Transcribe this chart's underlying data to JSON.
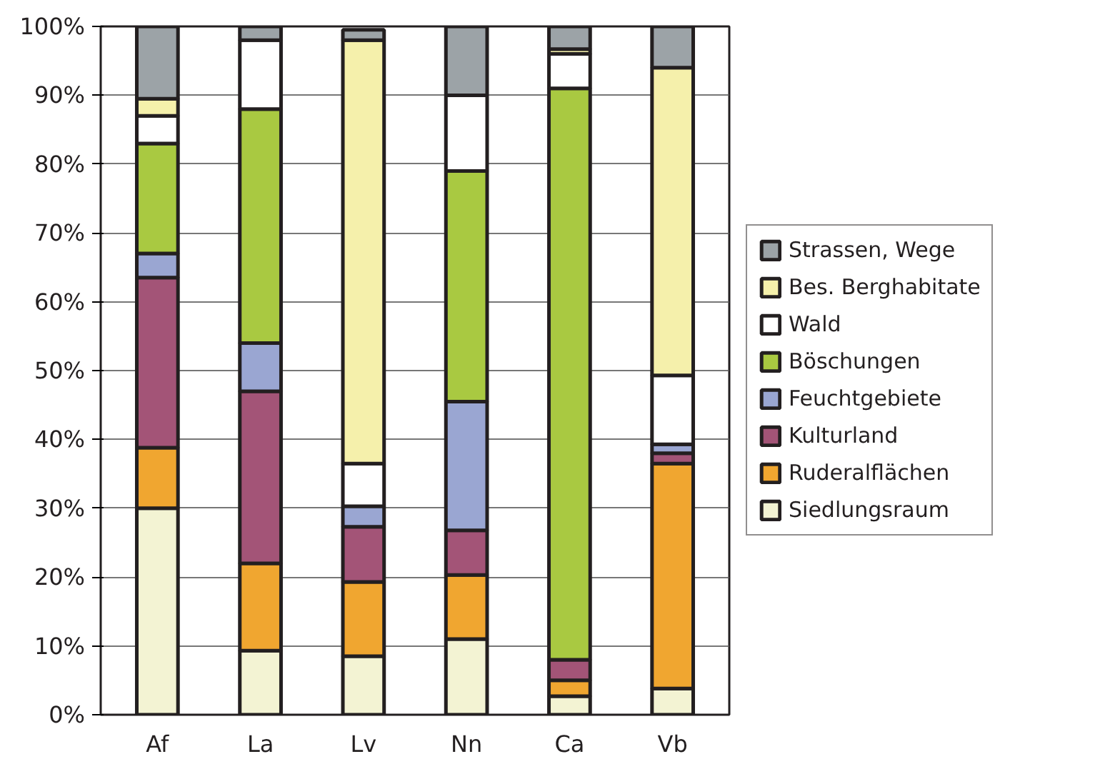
{
  "chart_data": {
    "type": "bar",
    "stacked": true,
    "categories": [
      "Af",
      "La",
      "Lv",
      "Nn",
      "Ca",
      "Vb"
    ],
    "ylim": [
      0,
      100
    ],
    "yticks": [
      {
        "value": 0,
        "label": "0%"
      },
      {
        "value": 10,
        "label": "10%"
      },
      {
        "value": 20,
        "label": "20%"
      },
      {
        "value": 30,
        "label": "30%"
      },
      {
        "value": 40,
        "label": "40%"
      },
      {
        "value": 50,
        "label": "50%"
      },
      {
        "value": 60,
        "label": "60%"
      },
      {
        "value": 70,
        "label": "70%"
      },
      {
        "value": 80,
        "label": "80%"
      },
      {
        "value": 90,
        "label": "90%"
      },
      {
        "value": 100,
        "label": "100%"
      }
    ],
    "grid": "y",
    "legend": "right",
    "series": [
      {
        "name": "Siedlungsraum",
        "color": "#f3f3d3",
        "values": [
          30,
          9.3,
          8.5,
          11,
          2.7,
          3.8
        ]
      },
      {
        "name": "Ruderalflächen",
        "color": "#f0a630",
        "values": [
          8.8,
          12.7,
          10.8,
          9.3,
          2.3,
          32.7
        ]
      },
      {
        "name": "Kulturland",
        "color": "#a35477",
        "values": [
          24.7,
          25,
          8,
          6.5,
          3,
          1.5
        ]
      },
      {
        "name": "Feuchtgebiete",
        "color": "#9aa6d2",
        "values": [
          3.5,
          7,
          3,
          18.7,
          0,
          1.3
        ]
      },
      {
        "name": "Böschungen",
        "color": "#a9c941",
        "values": [
          16,
          34,
          0,
          33.5,
          83,
          0
        ]
      },
      {
        "name": "Wald",
        "color": "#ffffff",
        "values": [
          4,
          10,
          6.2,
          11,
          5,
          10
        ]
      },
      {
        "name": "Bes. Berghabitate",
        "color": "#f5f0ab",
        "values": [
          2.5,
          0,
          61.5,
          0,
          0.7,
          44.7
        ]
      },
      {
        "name": "Strassen, Wege",
        "color": "#9ca3a7",
        "values": [
          10.5,
          2,
          1.5,
          10,
          3.3,
          6
        ]
      }
    ]
  }
}
